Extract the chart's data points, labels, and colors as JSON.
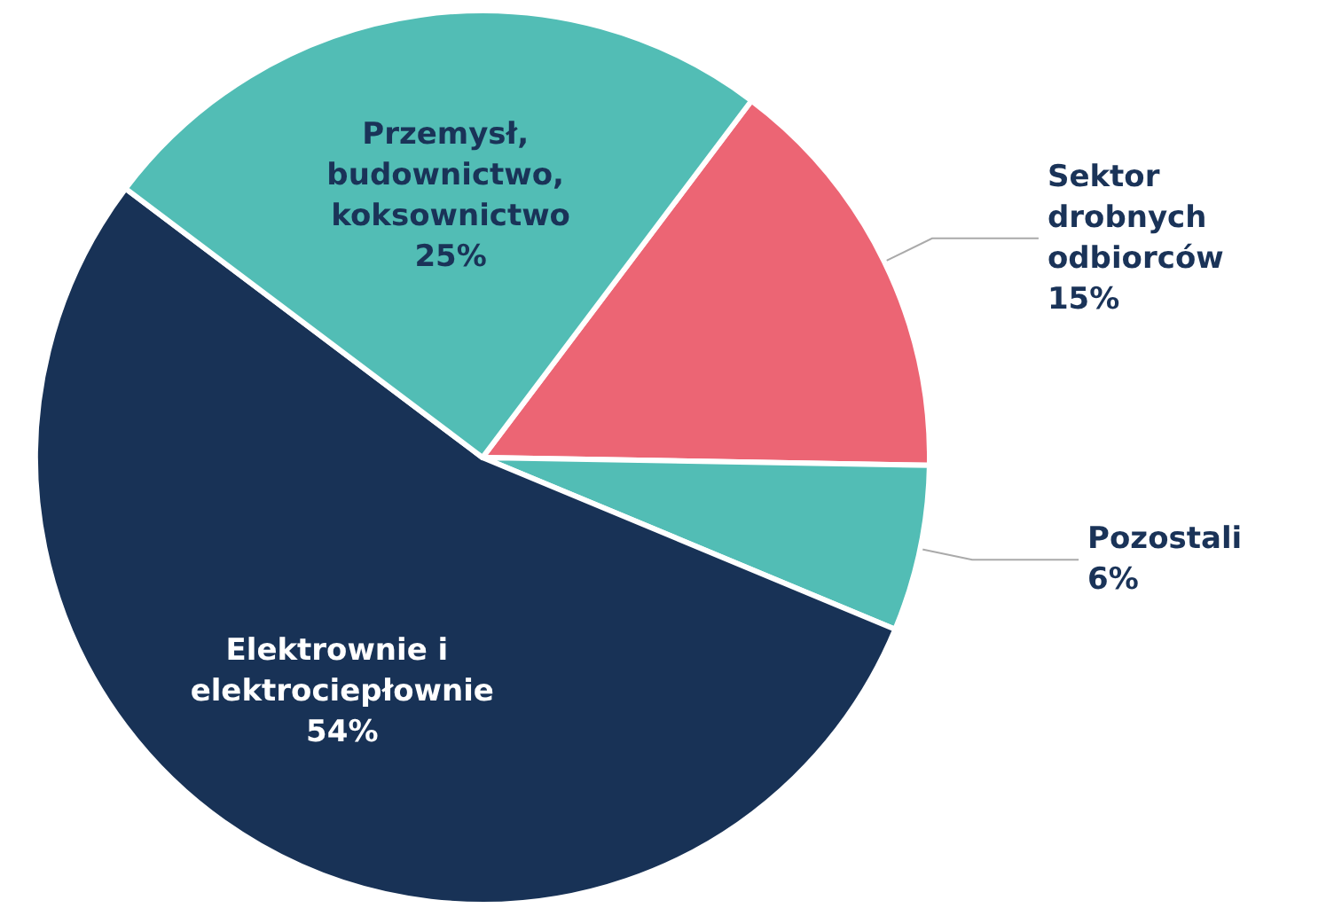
{
  "chart_data": {
    "type": "pie",
    "categories": [
      "Sektor drobnych odbiorców",
      "Pozostali",
      "Elektrownie i elektrociepłownie",
      "Przemysł, budownictwo, koksownictwo"
    ],
    "values": [
      15,
      6,
      54,
      25
    ],
    "colors": [
      "#ec6574",
      "#52bdb5",
      "#183256",
      "#52bdb5"
    ],
    "value_labels": [
      "15%",
      "6%",
      "54%",
      "25%"
    ],
    "legend": false
  }
}
